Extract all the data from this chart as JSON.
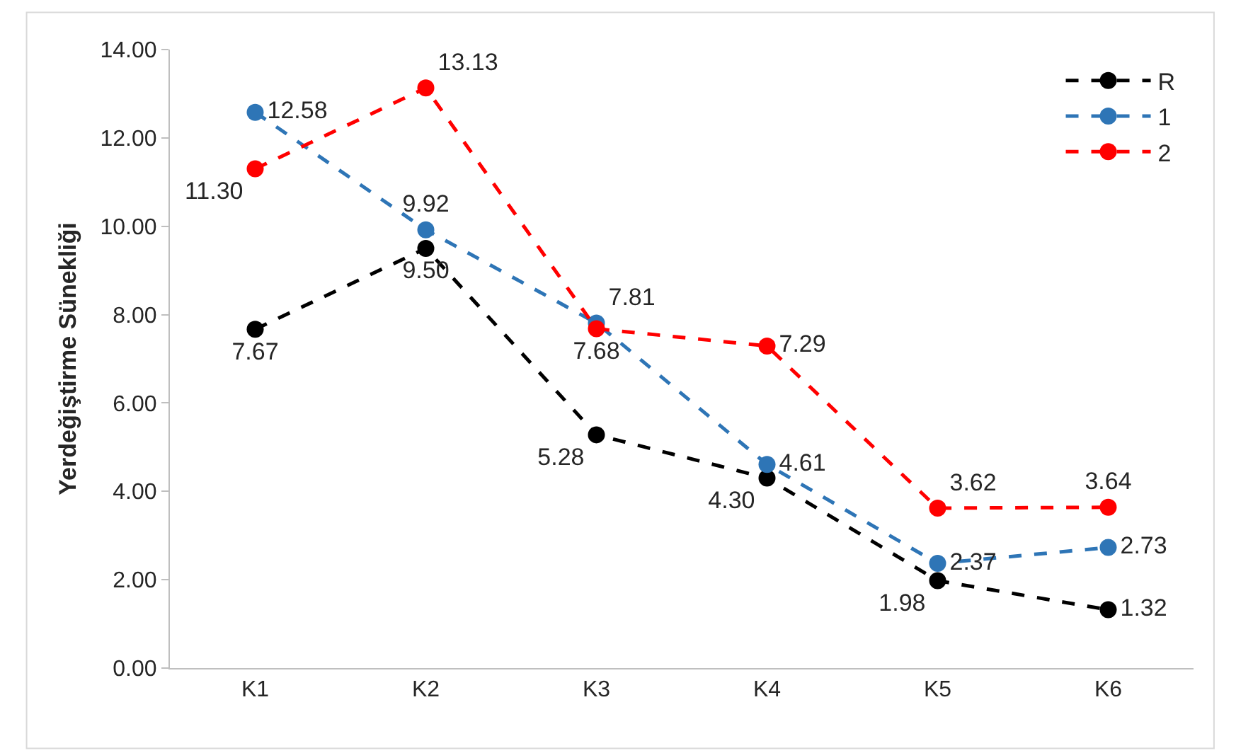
{
  "chart_data": {
    "type": "line",
    "ylabel": "Yerdeğiştirme Sünekliği",
    "categories": [
      "K1",
      "K2",
      "K3",
      "K4",
      "K5",
      "K6"
    ],
    "series": [
      {
        "name": "R",
        "color": "#000000",
        "values": [
          7.67,
          9.5,
          5.28,
          4.3,
          1.98,
          1.32
        ],
        "value_labels": [
          "7.67",
          "9.50",
          "5.28",
          "4.30",
          "1.98",
          "1.32"
        ]
      },
      {
        "name": "1",
        "color": "#2e75b6",
        "values": [
          12.58,
          9.92,
          7.81,
          4.61,
          2.37,
          2.73
        ],
        "value_labels": [
          "12.58",
          "9.92",
          "7.81",
          "4.61",
          "2.37",
          "2.73"
        ]
      },
      {
        "name": "2",
        "color": "#ff0000",
        "values": [
          11.3,
          13.13,
          7.68,
          7.29,
          3.62,
          3.64
        ],
        "value_labels": [
          "11.30",
          "13.13",
          "7.68",
          "7.29",
          "3.62",
          "3.64"
        ]
      }
    ],
    "ylim": [
      0,
      14
    ],
    "yticks": [
      {
        "value": 0,
        "label": "0.00"
      },
      {
        "value": 2,
        "label": "2.00"
      },
      {
        "value": 4,
        "label": "4.00"
      },
      {
        "value": 6,
        "label": "6.00"
      },
      {
        "value": 8,
        "label": "8.00"
      },
      {
        "value": 10,
        "label": "10.00"
      },
      {
        "value": 12,
        "label": "12.00"
      },
      {
        "value": 14,
        "label": "14.00"
      }
    ],
    "grid": false,
    "legend": "top right",
    "marker": "circle",
    "line_style": "dashed"
  }
}
